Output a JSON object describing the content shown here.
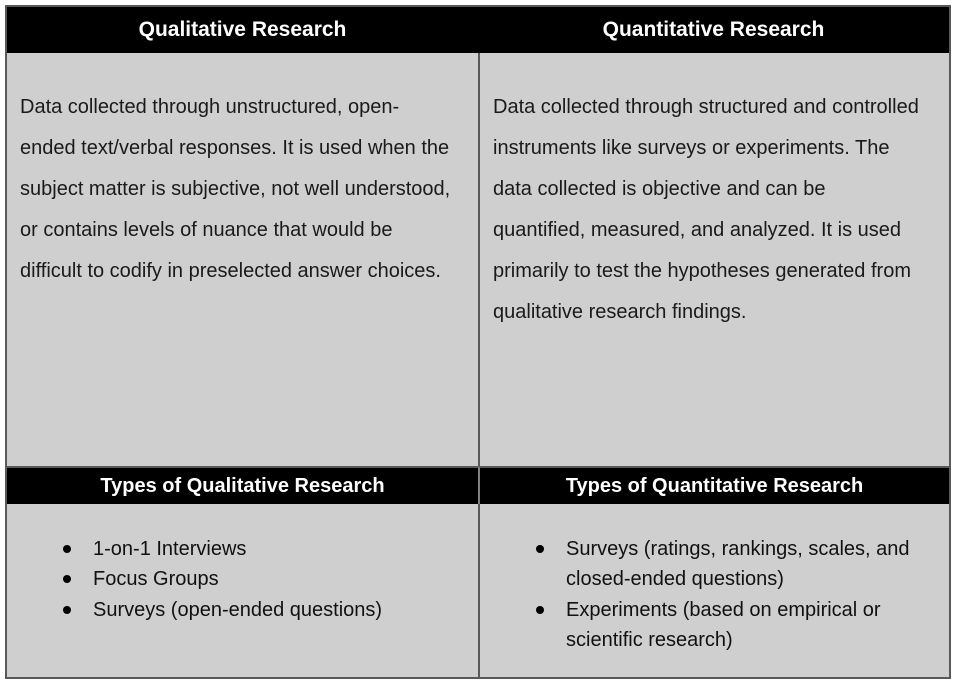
{
  "colors": {
    "header_bg": "#000000",
    "header_text": "#ffffff",
    "cell_bg": "#cfcfcf",
    "border": "#595959",
    "body_text": "#1a1a1a",
    "page_bg": "#ffffff"
  },
  "table": {
    "columns": [
      {
        "header": "Qualitative Research",
        "description": "Data collected through unstructured, open-ended text/verbal responses. It is used when the subject matter is subjective, not well understood, or contains levels of nuance that would be difficult to codify in preselected answer choices.",
        "types_header": "Types of Qualitative Research",
        "types": [
          "1-on-1 Interviews",
          "Focus Groups",
          "Surveys (open-ended questions)"
        ]
      },
      {
        "header": "Quantitative Research",
        "description": "Data collected through structured and controlled instruments like surveys or experiments. The data collected is objective and can be quantified, measured, and analyzed. It is used primarily to test the hypotheses generated from qualitative research findings.",
        "types_header": "Types of Quantitative Research",
        "types": [
          "Surveys (ratings, rankings, scales, and closed-ended questions)",
          "Experiments (based on empirical or scientific research)"
        ]
      }
    ]
  }
}
